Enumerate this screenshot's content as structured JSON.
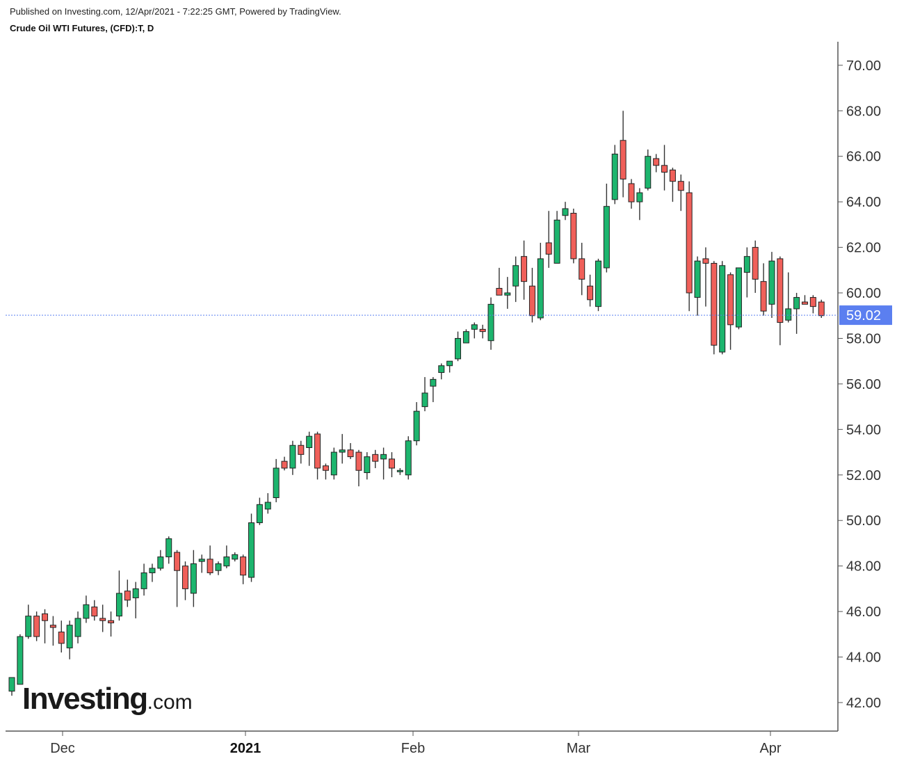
{
  "header": {
    "published": "Published on Investing.com, 12/Apr/2021 - 7:22:25 GMT, Powered by TradingView.",
    "symbol": "Crude Oil WTI Futures, (CFD):T, D"
  },
  "logo": {
    "main": "Investing",
    "suffix": ".com"
  },
  "colors": {
    "up": "#1db56e",
    "down": "#f0605a",
    "wick": "#333333",
    "price_line": "#5b7ff0",
    "price_badge": "#5b7ff0"
  },
  "chart_data": {
    "type": "candlestick",
    "ylim": [
      41,
      71
    ],
    "y_ticks": [
      "42.00",
      "44.00",
      "46.00",
      "48.00",
      "50.00",
      "52.00",
      "54.00",
      "56.00",
      "58.00",
      "60.00",
      "62.00",
      "64.00",
      "66.00",
      "68.00",
      "70.00"
    ],
    "x_labels": [
      {
        "label": "Dec",
        "index": 6,
        "bold": false
      },
      {
        "label": "2021",
        "index": 26,
        "bold": true
      },
      {
        "label": "Feb",
        "index": 45,
        "bold": false
      },
      {
        "label": "Mar",
        "index": 63,
        "bold": false
      },
      {
        "label": "Apr",
        "index": 84,
        "bold": false
      }
    ],
    "last_price": 59.02,
    "last_price_label": "59.02",
    "candles": [
      [
        42.5,
        43.1,
        42.3,
        43.1
      ],
      [
        42.8,
        45.0,
        42.8,
        44.9
      ],
      [
        44.9,
        46.3,
        44.8,
        45.8
      ],
      [
        45.8,
        46.0,
        44.7,
        44.9
      ],
      [
        45.9,
        46.1,
        44.6,
        45.6
      ],
      [
        45.4,
        45.8,
        44.5,
        45.3
      ],
      [
        45.1,
        45.6,
        44.2,
        44.6
      ],
      [
        44.4,
        45.6,
        43.9,
        45.4
      ],
      [
        44.9,
        46.0,
        44.6,
        45.7
      ],
      [
        45.7,
        46.7,
        45.5,
        46.3
      ],
      [
        46.2,
        46.5,
        45.6,
        45.8
      ],
      [
        45.7,
        46.3,
        45.1,
        45.6
      ],
      [
        45.6,
        46.0,
        44.9,
        45.5
      ],
      [
        45.8,
        47.8,
        45.6,
        46.8
      ],
      [
        46.9,
        47.4,
        46.2,
        46.5
      ],
      [
        46.6,
        47.3,
        45.7,
        47.0
      ],
      [
        47.0,
        48.1,
        46.7,
        47.7
      ],
      [
        47.7,
        48.1,
        47.3,
        47.9
      ],
      [
        47.9,
        48.7,
        47.8,
        48.4
      ],
      [
        48.4,
        49.3,
        48.1,
        49.2
      ],
      [
        48.6,
        48.7,
        46.2,
        47.8
      ],
      [
        48.0,
        48.2,
        46.5,
        47.0
      ],
      [
        46.8,
        48.7,
        46.2,
        48.1
      ],
      [
        48.2,
        48.5,
        47.7,
        48.3
      ],
      [
        48.3,
        48.9,
        47.6,
        47.7
      ],
      [
        47.8,
        48.2,
        47.6,
        48.1
      ],
      [
        48.0,
        48.9,
        47.9,
        48.4
      ],
      [
        48.3,
        48.6,
        48.2,
        48.5
      ],
      [
        48.4,
        48.5,
        47.2,
        47.6
      ],
      [
        47.5,
        50.3,
        47.3,
        49.9
      ],
      [
        49.9,
        51.0,
        49.8,
        50.7
      ],
      [
        50.5,
        51.2,
        50.3,
        50.8
      ],
      [
        51.0,
        52.7,
        50.8,
        52.3
      ],
      [
        52.6,
        52.8,
        52.2,
        52.3
      ],
      [
        52.3,
        53.5,
        52.0,
        53.3
      ],
      [
        53.3,
        53.5,
        52.5,
        52.9
      ],
      [
        53.2,
        53.9,
        52.4,
        53.7
      ],
      [
        53.8,
        53.9,
        51.8,
        52.3
      ],
      [
        52.4,
        52.5,
        51.8,
        52.2
      ],
      [
        52.0,
        53.2,
        51.8,
        53.0
      ],
      [
        53.0,
        53.8,
        52.5,
        53.1
      ],
      [
        53.1,
        53.4,
        52.7,
        52.8
      ],
      [
        53.0,
        53.1,
        51.5,
        52.2
      ],
      [
        52.1,
        53.0,
        51.8,
        52.8
      ],
      [
        52.9,
        53.1,
        52.3,
        52.6
      ],
      [
        52.7,
        53.2,
        51.8,
        52.9
      ],
      [
        52.7,
        53.0,
        51.9,
        52.3
      ],
      [
        52.2,
        52.3,
        52.0,
        52.2
      ],
      [
        52.0,
        53.7,
        51.8,
        53.5
      ],
      [
        53.5,
        55.2,
        53.3,
        54.8
      ],
      [
        55.0,
        56.3,
        54.8,
        55.6
      ],
      [
        55.9,
        56.3,
        55.2,
        56.2
      ],
      [
        56.5,
        56.9,
        56.2,
        56.8
      ],
      [
        56.8,
        57.0,
        56.5,
        57.0
      ],
      [
        57.1,
        58.3,
        57.0,
        58.0
      ],
      [
        57.8,
        58.4,
        57.8,
        58.3
      ],
      [
        58.4,
        58.7,
        58.0,
        58.6
      ],
      [
        58.4,
        58.6,
        58.0,
        58.3
      ],
      [
        57.9,
        59.8,
        57.5,
        59.5
      ],
      [
        60.2,
        61.1,
        59.9,
        59.9
      ],
      [
        59.9,
        60.7,
        59.3,
        60.0
      ],
      [
        60.3,
        61.6,
        59.6,
        61.2
      ],
      [
        61.6,
        62.3,
        59.7,
        60.5
      ],
      [
        60.3,
        61.1,
        58.7,
        59.0
      ],
      [
        58.9,
        62.2,
        58.8,
        61.5
      ],
      [
        62.2,
        63.6,
        61.1,
        61.7
      ],
      [
        61.3,
        63.6,
        61.3,
        63.2
      ],
      [
        63.4,
        64.0,
        63.2,
        63.7
      ],
      [
        63.5,
        63.7,
        61.3,
        61.5
      ],
      [
        61.5,
        62.2,
        59.9,
        60.6
      ],
      [
        60.3,
        60.8,
        59.4,
        59.7
      ],
      [
        59.4,
        61.5,
        59.2,
        61.4
      ],
      [
        61.1,
        64.8,
        60.9,
        63.8
      ],
      [
        64.1,
        66.5,
        63.9,
        66.1
      ],
      [
        66.7,
        68.0,
        64.2,
        65.0
      ],
      [
        64.8,
        65.0,
        63.7,
        64.0
      ],
      [
        64.0,
        64.6,
        63.2,
        64.4
      ],
      [
        64.6,
        66.3,
        64.5,
        66.0
      ],
      [
        65.9,
        66.1,
        65.3,
        65.6
      ],
      [
        65.6,
        66.5,
        64.5,
        65.3
      ],
      [
        65.4,
        65.5,
        64.0,
        64.9
      ],
      [
        64.9,
        65.2,
        63.6,
        64.5
      ],
      [
        64.4,
        64.9,
        59.2,
        60.0
      ],
      [
        59.8,
        61.6,
        59.0,
        61.4
      ],
      [
        61.5,
        62.0,
        59.4,
        61.3
      ],
      [
        61.3,
        61.4,
        57.3,
        57.7
      ],
      [
        57.4,
        61.4,
        57.3,
        61.2
      ],
      [
        60.8,
        60.9,
        57.5,
        58.6
      ],
      [
        58.5,
        61.1,
        58.4,
        61.1
      ],
      [
        60.9,
        62.0,
        59.8,
        61.6
      ],
      [
        62.0,
        62.3,
        60.0,
        60.6
      ],
      [
        60.5,
        61.3,
        59.0,
        59.2
      ],
      [
        59.5,
        61.8,
        58.9,
        61.4
      ],
      [
        61.5,
        61.6,
        57.7,
        58.7
      ],
      [
        58.8,
        60.9,
        58.7,
        59.3
      ],
      [
        59.3,
        60.0,
        58.2,
        59.8
      ],
      [
        59.6,
        59.9,
        59.5,
        59.5
      ],
      [
        59.8,
        59.9,
        59.1,
        59.4
      ],
      [
        59.6,
        59.7,
        58.9,
        59.0
      ]
    ]
  }
}
